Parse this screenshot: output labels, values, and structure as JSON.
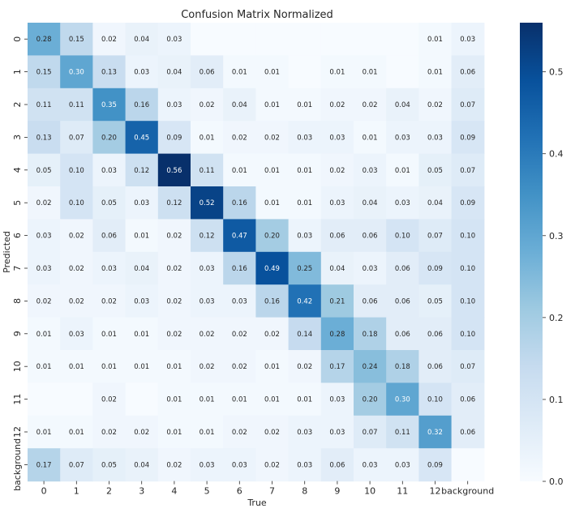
{
  "chart_data": {
    "type": "heatmap",
    "title": "Confusion Matrix Normalized",
    "xlabel": "True",
    "ylabel": "Predicted",
    "x_categories": [
      "0",
      "1",
      "2",
      "3",
      "4",
      "5",
      "6",
      "7",
      "8",
      "9",
      "10",
      "11",
      "12",
      "background"
    ],
    "y_categories": [
      "0",
      "1",
      "2",
      "3",
      "4",
      "5",
      "6",
      "7",
      "8",
      "9",
      "10",
      "11",
      "12",
      "background"
    ],
    "values": [
      [
        0.28,
        0.15,
        0.02,
        0.04,
        0.03,
        null,
        null,
        null,
        null,
        null,
        null,
        null,
        0.01,
        0.03
      ],
      [
        0.15,
        0.3,
        0.13,
        0.03,
        0.04,
        0.06,
        0.01,
        0.01,
        null,
        0.01,
        0.01,
        null,
        0.01,
        0.06
      ],
      [
        0.11,
        0.11,
        0.35,
        0.16,
        0.03,
        0.02,
        0.04,
        0.01,
        0.01,
        0.02,
        0.02,
        0.04,
        0.02,
        0.07
      ],
      [
        0.13,
        0.07,
        0.2,
        0.45,
        0.09,
        0.01,
        0.02,
        0.02,
        0.03,
        0.03,
        0.01,
        0.03,
        0.03,
        0.09
      ],
      [
        0.05,
        0.1,
        0.03,
        0.12,
        0.56,
        0.11,
        0.01,
        0.01,
        0.01,
        0.02,
        0.03,
        0.01,
        0.05,
        0.07
      ],
      [
        0.02,
        0.1,
        0.05,
        0.03,
        0.12,
        0.52,
        0.16,
        0.01,
        0.01,
        0.03,
        0.04,
        0.03,
        0.04,
        0.09
      ],
      [
        0.03,
        0.02,
        0.06,
        0.01,
        0.02,
        0.12,
        0.47,
        0.2,
        0.03,
        0.06,
        0.06,
        0.1,
        0.07,
        0.1
      ],
      [
        0.03,
        0.02,
        0.03,
        0.04,
        0.02,
        0.03,
        0.16,
        0.49,
        0.25,
        0.04,
        0.03,
        0.06,
        0.09,
        0.1
      ],
      [
        0.02,
        0.02,
        0.02,
        0.03,
        0.02,
        0.03,
        0.03,
        0.16,
        0.42,
        0.21,
        0.06,
        0.06,
        0.05,
        0.1
      ],
      [
        0.01,
        0.03,
        0.01,
        0.01,
        0.02,
        0.02,
        0.02,
        0.02,
        0.14,
        0.28,
        0.18,
        0.06,
        0.06,
        0.1
      ],
      [
        0.01,
        0.01,
        0.01,
        0.01,
        0.01,
        0.02,
        0.02,
        0.01,
        0.02,
        0.17,
        0.24,
        0.18,
        0.06,
        0.07
      ],
      [
        null,
        null,
        0.02,
        null,
        0.01,
        0.01,
        0.01,
        0.01,
        0.01,
        0.03,
        0.2,
        0.3,
        0.1,
        0.06
      ],
      [
        0.01,
        0.01,
        0.02,
        0.02,
        0.01,
        0.01,
        0.02,
        0.02,
        0.03,
        0.03,
        0.07,
        0.11,
        0.32,
        0.06
      ],
      [
        0.17,
        0.07,
        0.05,
        0.04,
        0.02,
        0.03,
        0.03,
        0.02,
        0.03,
        0.06,
        0.03,
        0.03,
        0.09,
        null
      ]
    ],
    "vmin": 0.0,
    "vmax": 0.56,
    "colormap": "Blues",
    "colorbar_ticks": [
      0.0,
      0.1,
      0.2,
      0.3,
      0.4,
      0.5
    ],
    "colorbar_tick_labels": [
      "0.0",
      "0.1",
      "0.2",
      "0.3",
      "0.4",
      "0.5"
    ],
    "color_low": "#f7fbff",
    "color_high": "#08306b",
    "light_text_color": "#ffffff",
    "dark_text_color": "#262626"
  }
}
